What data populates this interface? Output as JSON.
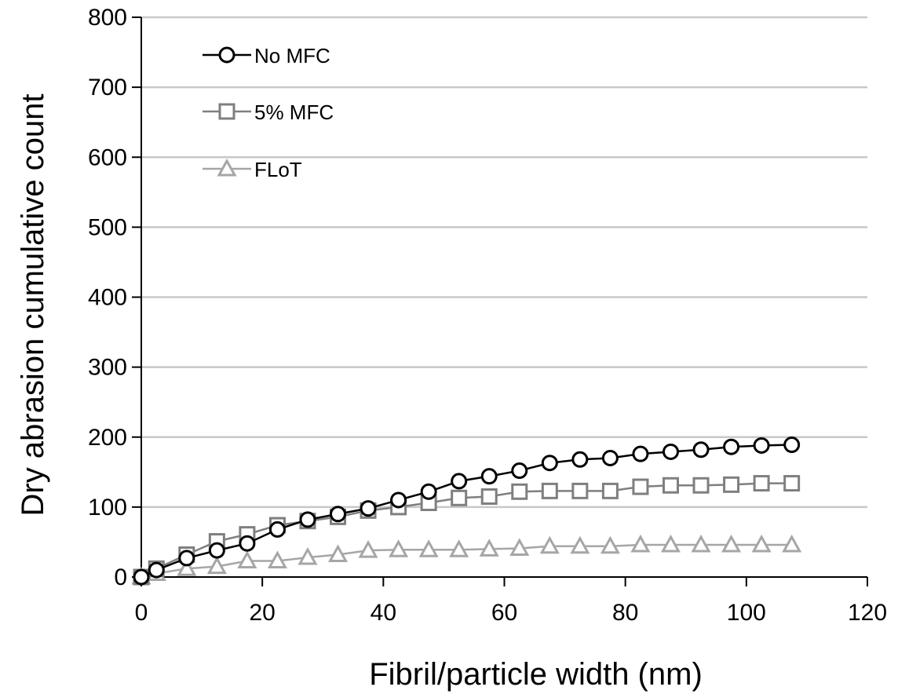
{
  "chart_data": {
    "type": "line",
    "title": "",
    "xlabel": "Fibril/particle width (nm)",
    "ylabel": "Dry abrasion cumulative count",
    "xlim": [
      0,
      120
    ],
    "ylim": [
      0,
      800
    ],
    "x_ticks": [
      "0",
      "20",
      "40",
      "60",
      "80",
      "100",
      "120"
    ],
    "y_ticks": [
      "0",
      "100",
      "200",
      "300",
      "400",
      "500",
      "600",
      "700",
      "800"
    ],
    "grid": "horizontal",
    "legend_position": "top-left",
    "x": [
      0,
      2.5,
      7.5,
      12.5,
      17.5,
      22.5,
      27.5,
      32.5,
      37.5,
      42.5,
      47.5,
      52.5,
      57.5,
      62.5,
      67.5,
      72.5,
      77.5,
      82.5,
      87.5,
      92.5,
      97.5,
      102.5,
      107.5
    ],
    "series": [
      {
        "name": "No MFC",
        "color": "#000000",
        "marker": "circle",
        "values": [
          0,
          10,
          27,
          38,
          48,
          68,
          82,
          90,
          98,
          110,
          122,
          137,
          144,
          152,
          163,
          168,
          170,
          176,
          179,
          182,
          186,
          188,
          189
        ]
      },
      {
        "name": "5% MFC",
        "color": "#7f7f7f",
        "marker": "square",
        "values": [
          0,
          12,
          32,
          51,
          61,
          74,
          80,
          86,
          95,
          100,
          106,
          113,
          115,
          122,
          123,
          123,
          123,
          129,
          131,
          131,
          132,
          134,
          134
        ]
      },
      {
        "name": "FLoT",
        "color": "#a6a6a6",
        "marker": "triangle",
        "values": [
          0,
          5,
          12,
          15,
          23,
          23,
          28,
          32,
          38,
          39,
          39,
          39,
          40,
          41,
          44,
          44,
          44,
          46,
          46,
          46,
          46,
          46,
          46
        ]
      }
    ]
  }
}
